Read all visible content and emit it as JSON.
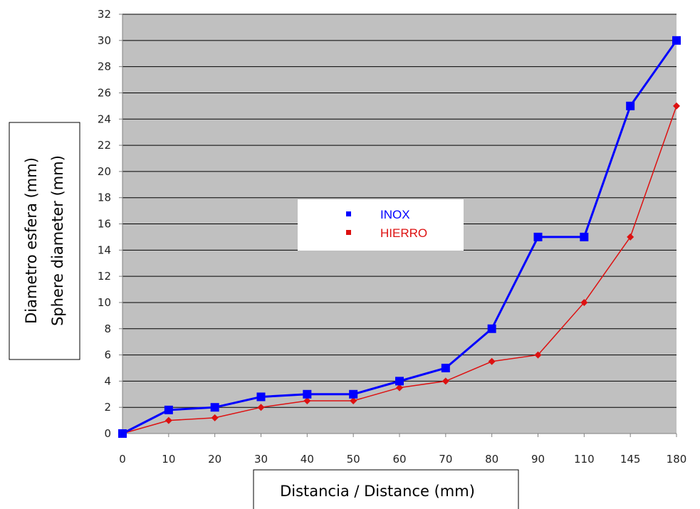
{
  "chart_data": {
    "type": "line",
    "categories": [
      "0",
      "10",
      "20",
      "30",
      "40",
      "50",
      "60",
      "70",
      "80",
      "90",
      "110",
      "145",
      "180"
    ],
    "series": [
      {
        "name": "INOX",
        "color": "#0000ff",
        "marker": "square",
        "values": [
          0,
          1.8,
          2,
          2.8,
          3,
          3,
          4,
          5,
          8,
          15,
          15,
          25,
          30
        ]
      },
      {
        "name": "HIERRO",
        "color": "#dd1111",
        "marker": "diamond",
        "values": [
          0,
          1,
          1.2,
          2,
          2.5,
          2.5,
          3.5,
          4,
          5.5,
          6,
          10,
          15,
          25
        ]
      }
    ],
    "ylim": [
      0,
      32
    ],
    "yticks": [
      "0",
      "2",
      "4",
      "6",
      "8",
      "10",
      "12",
      "14",
      "16",
      "18",
      "20",
      "22",
      "24",
      "26",
      "28",
      "30",
      "32"
    ],
    "xlabel": "Distancia / Distance (mm)",
    "ylabel_line1": "Diametro esfera (mm)",
    "ylabel_line2": "Sphere diameter (mm)",
    "grid": "horizontal",
    "plot_background": "#c0c0c0",
    "legend_placement": "center"
  }
}
